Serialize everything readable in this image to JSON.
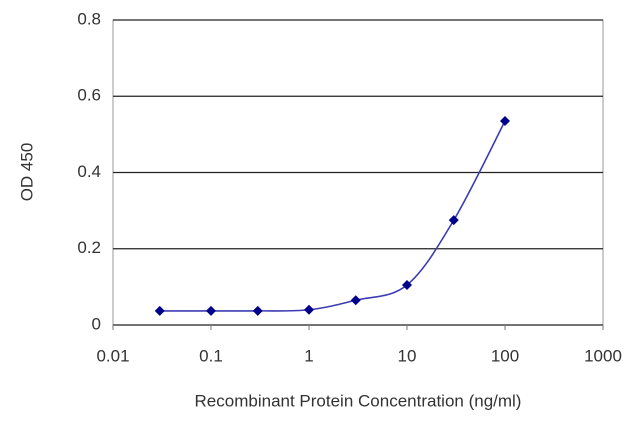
{
  "chart_data": {
    "type": "line",
    "x_label": "Recombinant Protein Concentration (ng/ml)",
    "y_label": "OD 450",
    "x": [
      0.03,
      0.1,
      0.3,
      1,
      3,
      10,
      30,
      100
    ],
    "series": [
      {
        "color": "#00008b",
        "line_color": "#3c3cb4",
        "values": [
          0.037,
          0.037,
          0.037,
          0.04,
          0.065,
          0.105,
          0.275,
          0.535
        ]
      }
    ],
    "xscale": "log",
    "xlim": [
      0.01,
      1000
    ],
    "xticks": [
      0.01,
      0.1,
      1,
      10,
      100,
      1000
    ],
    "ylim": [
      0,
      0.8
    ],
    "yticks": [
      0,
      0.2,
      0.4,
      0.6,
      0.8
    ],
    "grid": true
  }
}
